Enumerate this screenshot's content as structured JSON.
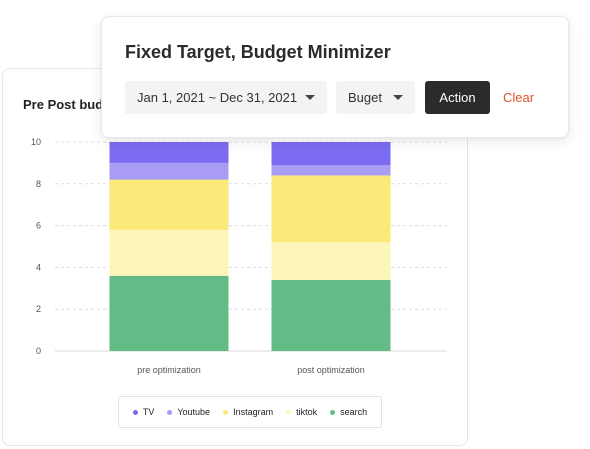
{
  "chart_card": {
    "title": "Pre Post budg"
  },
  "filter_bar": {
    "title": "Fixed Target, Budget Minimizer",
    "date_range": "Jan 1, 2021 ~ Dec 31, 2021",
    "budget": "Buget",
    "action_label": "Action",
    "clear_label": "Clear"
  },
  "colors": {
    "TV": "#7b6cf2",
    "Youtube": "#a99cf4",
    "Instagram": "#fbe979",
    "tiktok": "#fdf6bb",
    "search": "#63bb86",
    "clear": "#e1542a",
    "action_bg": "#2b2b2b"
  },
  "legend": [
    {
      "name": "TV",
      "color": "#7b6cf2"
    },
    {
      "name": "Youtube",
      "color": "#a99cf4"
    },
    {
      "name": "Instagram",
      "color": "#f8d661"
    },
    {
      "name": "tiktok",
      "color": "#fcec9a"
    },
    {
      "name": "search",
      "color": "#4fa86f"
    }
  ],
  "chart_data": {
    "type": "bar",
    "stacked": true,
    "categories": [
      "pre optimization",
      "post optimization"
    ],
    "series": [
      {
        "name": "search",
        "values": [
          3.6,
          3.4
        ]
      },
      {
        "name": "tiktok",
        "values": [
          2.2,
          1.8
        ]
      },
      {
        "name": "Instagram",
        "values": [
          2.4,
          3.2
        ]
      },
      {
        "name": "Youtube",
        "values": [
          0.8,
          0.5
        ]
      },
      {
        "name": "TV",
        "values": [
          1.0,
          1.1
        ]
      }
    ],
    "ylim": [
      0,
      10
    ],
    "yticks": [
      0,
      2,
      4,
      6,
      8,
      10
    ],
    "grid": true,
    "legend_position": "bottom"
  }
}
